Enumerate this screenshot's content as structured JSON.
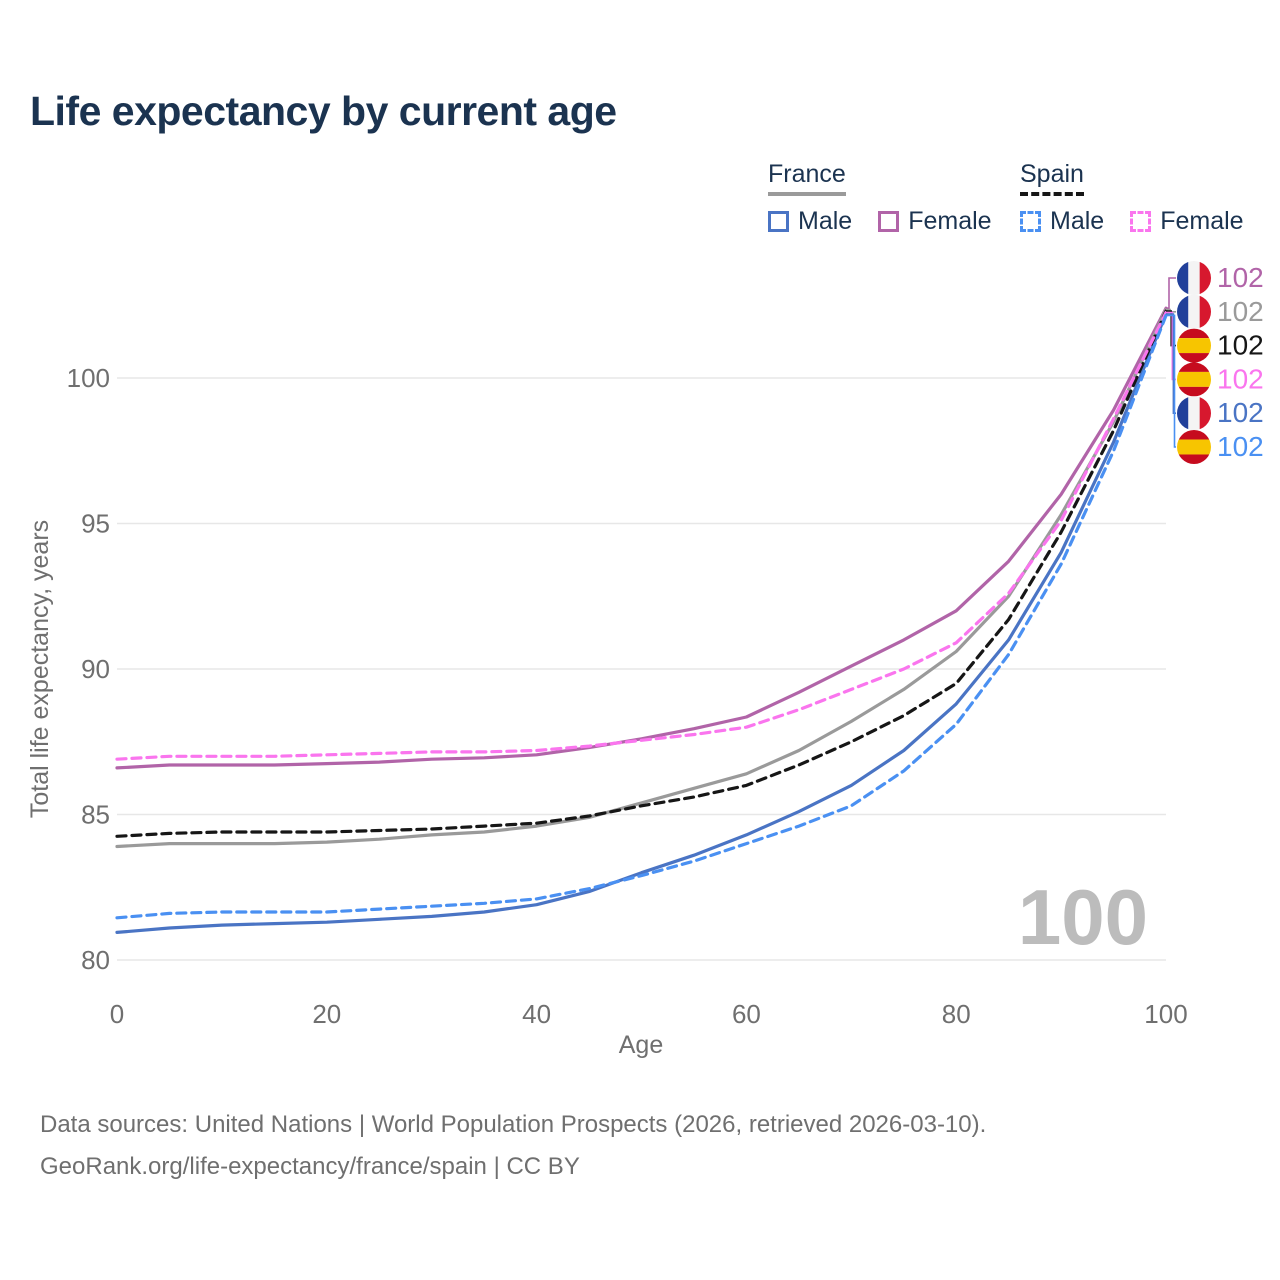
{
  "header": {
    "title": "Life expectancy by current age"
  },
  "legend": {
    "groups": [
      {
        "id": "france",
        "label": "France",
        "line_style": "solid",
        "items": [
          {
            "id": "france-male",
            "label": "Male",
            "color": "#4a74c4"
          },
          {
            "id": "france-female",
            "label": "Female",
            "color": "#b164a8"
          }
        ]
      },
      {
        "id": "spain",
        "label": "Spain",
        "line_style": "dashed",
        "items": [
          {
            "id": "spain-male",
            "label": "Male",
            "color": "#4a90f2"
          },
          {
            "id": "spain-female",
            "label": "Female",
            "color": "#fa75ee"
          }
        ]
      }
    ]
  },
  "chart_data": {
    "type": "line",
    "title": "Life expectancy by current age",
    "xlabel": "Age",
    "ylabel": "Total life expectancy, years",
    "xlim": [
      0,
      100
    ],
    "ylim": [
      80,
      103
    ],
    "x_ticks": [
      0,
      20,
      40,
      60,
      80,
      100
    ],
    "y_ticks": [
      80,
      85,
      90,
      95,
      100
    ],
    "grid": "horizontal-only",
    "age_indicator": "100",
    "ages": [
      0,
      5,
      10,
      15,
      20,
      25,
      30,
      35,
      40,
      45,
      50,
      55,
      60,
      65,
      70,
      75,
      80,
      85,
      90,
      95,
      100
    ],
    "series": [
      {
        "id": "france-female",
        "name": "France Female",
        "country": "France",
        "sex": "Female",
        "color": "#b164a8",
        "dash": "solid",
        "flag": "fr",
        "end_label": "102",
        "end_value": 102.4,
        "values": [
          86.6,
          86.7,
          86.7,
          86.7,
          86.75,
          86.8,
          86.9,
          86.95,
          87.05,
          87.3,
          87.6,
          87.95,
          88.35,
          89.2,
          90.1,
          91.0,
          92.0,
          93.7,
          96.0,
          98.9,
          102.4
        ]
      },
      {
        "id": "france-both",
        "name": "France",
        "country": "France",
        "sex": "Both",
        "color": "#9a9a9a",
        "dash": "solid",
        "flag": "fr",
        "end_label": "102",
        "end_value": 102.35,
        "values": [
          83.9,
          84.0,
          84.0,
          84.0,
          84.05,
          84.15,
          84.3,
          84.4,
          84.6,
          84.9,
          85.4,
          85.9,
          86.4,
          87.2,
          88.2,
          89.3,
          90.6,
          92.5,
          95.3,
          98.5,
          102.35
        ]
      },
      {
        "id": "spain-both",
        "name": "Spain",
        "country": "Spain",
        "sex": "Both",
        "color": "#161616",
        "dash": "dashed",
        "flag": "es",
        "end_label": "102",
        "end_value": 102.3,
        "values": [
          84.25,
          84.35,
          84.4,
          84.4,
          84.4,
          84.45,
          84.5,
          84.6,
          84.7,
          84.95,
          85.3,
          85.6,
          86.0,
          86.7,
          87.5,
          88.4,
          89.5,
          91.7,
          94.7,
          98.2,
          102.3
        ]
      },
      {
        "id": "spain-female",
        "name": "Spain Female",
        "country": "Spain",
        "sex": "Female",
        "color": "#fa75ee",
        "dash": "dashed",
        "flag": "es",
        "end_label": "102",
        "end_value": 102.25,
        "values": [
          86.9,
          87.0,
          87.0,
          87.0,
          87.05,
          87.1,
          87.15,
          87.15,
          87.2,
          87.35,
          87.55,
          87.75,
          88.0,
          88.6,
          89.3,
          90.0,
          90.9,
          92.6,
          95.1,
          98.6,
          102.25
        ]
      },
      {
        "id": "france-male",
        "name": "France Male",
        "country": "France",
        "sex": "Male",
        "color": "#4a74c4",
        "dash": "solid",
        "flag": "fr",
        "end_label": "102",
        "end_value": 102.2,
        "values": [
          80.95,
          81.1,
          81.2,
          81.25,
          81.3,
          81.4,
          81.5,
          81.65,
          81.9,
          82.35,
          83.0,
          83.6,
          84.3,
          85.1,
          86.0,
          87.2,
          88.8,
          91.0,
          94.0,
          97.8,
          102.2
        ]
      },
      {
        "id": "spain-male",
        "name": "Spain Male",
        "country": "Spain",
        "sex": "Male",
        "color": "#4a90f2",
        "dash": "dashed",
        "flag": "es",
        "end_label": "102",
        "end_value": 102.15,
        "values": [
          81.45,
          81.6,
          81.65,
          81.65,
          81.65,
          81.75,
          81.85,
          81.95,
          82.1,
          82.45,
          82.9,
          83.4,
          84.0,
          84.6,
          85.3,
          86.5,
          88.1,
          90.5,
          93.6,
          97.5,
          102.15
        ]
      }
    ],
    "flag_colors": {
      "fr": {
        "left": "#21409a",
        "mid": "#f4f4f4",
        "right": "#d7182e"
      },
      "es": {
        "band": "#c60b1e",
        "mid": "#f7c500"
      }
    }
  },
  "footer": {
    "line1": "Data sources: United Nations | World Population Prospects (2026, retrieved 2026-03-10).",
    "line2": "GeoRank.org/life-expectancy/france/spain | CC BY"
  }
}
